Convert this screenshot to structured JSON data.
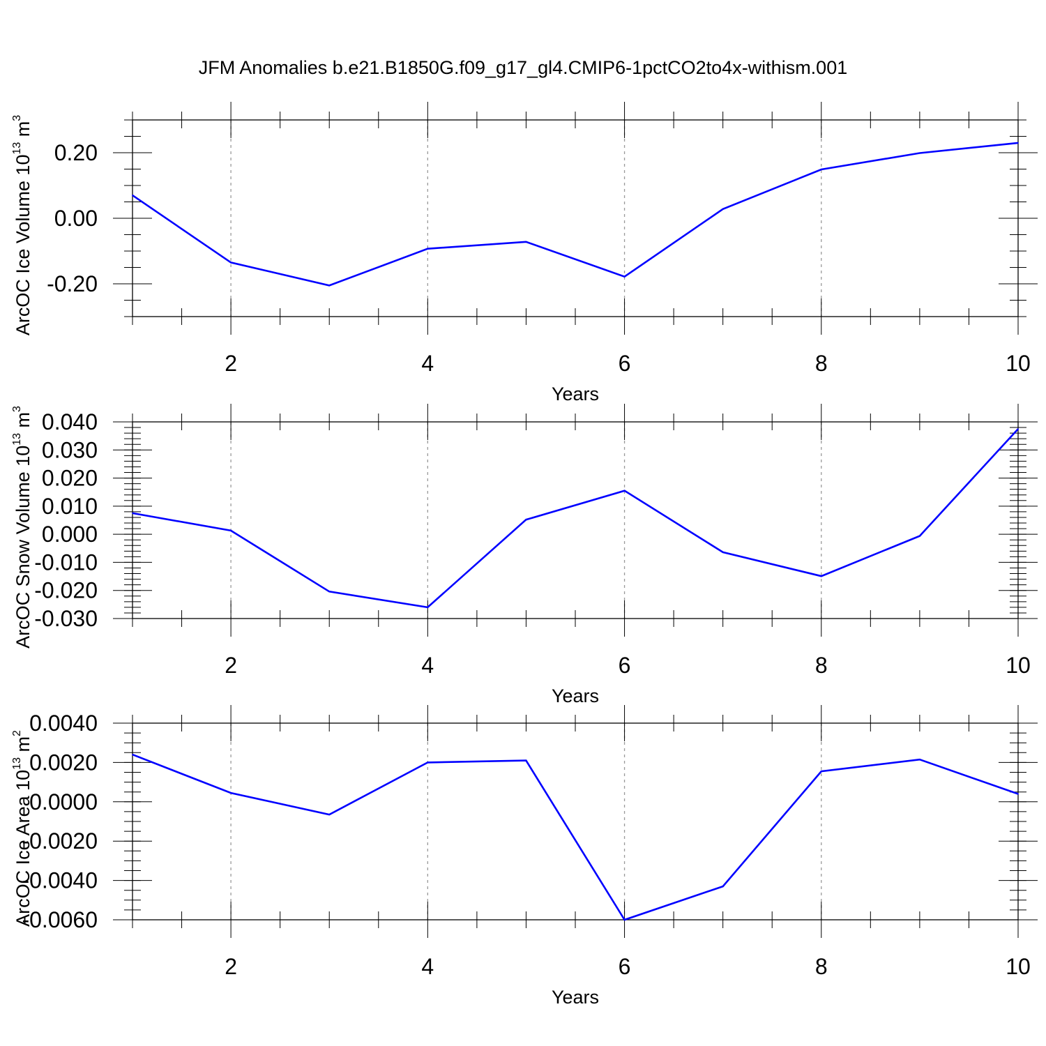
{
  "figure": {
    "title": "JFM Anomalies b.e21.B1850G.f09_g17_gl4.CMIP6-1pctCO2to4x-withism.001"
  },
  "colors": {
    "line": "#0000ff",
    "axis": "#000000",
    "grid": "#999999"
  },
  "chart_data": [
    {
      "type": "line",
      "title": "JFM Anomalies b.e21.B1850G.f09_g17_gl4.CMIP6-1pctCO2to4x-withism.001",
      "ylabel_main": "ArcOC Ice Volume 10",
      "ylabel_sup": "13",
      "ylabel_unit": " m",
      "ylabel_unit_sup": "3",
      "xlabel": "Years",
      "xlim": [
        1,
        10
      ],
      "ylim": [
        -0.3,
        0.3
      ],
      "xticks": [
        2,
        4,
        6,
        8,
        10
      ],
      "xtick_labels": [
        "2",
        "4",
        "6",
        "8",
        "10"
      ],
      "yticks": [
        -0.2,
        0.0,
        0.2
      ],
      "ytick_labels": [
        "-0.20",
        "0.00",
        "0.20"
      ],
      "yminor_step": 0.05,
      "grid": "vertical-dashed",
      "x": [
        1,
        2,
        3,
        4,
        5,
        6,
        7,
        8,
        9,
        10
      ],
      "values": [
        0.07,
        -0.135,
        -0.205,
        -0.093,
        -0.072,
        -0.178,
        0.028,
        0.149,
        0.199,
        0.23
      ]
    },
    {
      "type": "line",
      "ylabel_main": "ArcOC Snow Volume 10",
      "ylabel_sup": "13",
      "ylabel_unit": " m",
      "ylabel_unit_sup": "3",
      "xlabel": "Years",
      "xlim": [
        1,
        10
      ],
      "ylim": [
        -0.03,
        0.04
      ],
      "xticks": [
        2,
        4,
        6,
        8,
        10
      ],
      "xtick_labels": [
        "2",
        "4",
        "6",
        "8",
        "10"
      ],
      "yticks": [
        -0.03,
        -0.02,
        -0.01,
        0.0,
        0.01,
        0.02,
        0.03,
        0.04
      ],
      "ytick_labels": [
        "-0.030",
        "-0.020",
        "-0.010",
        "0.000",
        "0.010",
        "0.020",
        "0.030",
        "0.040"
      ],
      "yminor_step": 0.002,
      "grid": "vertical-dashed",
      "x": [
        1,
        2,
        3,
        4,
        5,
        6,
        7,
        8,
        9,
        10
      ],
      "values": [
        0.0075,
        0.0013,
        -0.0204,
        -0.026,
        0.0052,
        0.0155,
        -0.0064,
        -0.0149,
        -0.0006,
        0.0375
      ]
    },
    {
      "type": "line",
      "ylabel_main": "ArcOC Ice Area 10",
      "ylabel_sup": "13",
      "ylabel_unit": " m",
      "ylabel_unit_sup": "2",
      "xlabel": "Years",
      "xlim": [
        1,
        10
      ],
      "ylim": [
        -0.006,
        0.004
      ],
      "xticks": [
        2,
        4,
        6,
        8,
        10
      ],
      "xtick_labels": [
        "2",
        "4",
        "6",
        "8",
        "10"
      ],
      "yticks": [
        -0.006,
        -0.004,
        -0.002,
        0.0,
        0.002,
        0.004
      ],
      "ytick_labels": [
        "-0.0060",
        "-0.0040",
        "-0.0020",
        "0.0000",
        "0.0020",
        "0.0040"
      ],
      "yminor_step": 0.0005,
      "grid": "vertical-dashed",
      "x": [
        1,
        2,
        3,
        4,
        5,
        6,
        7,
        8,
        9,
        10
      ],
      "values": [
        0.0024,
        0.00045,
        -0.00065,
        0.002,
        0.0021,
        -0.006,
        -0.0043,
        0.00155,
        0.00215,
        0.0004
      ]
    }
  ]
}
